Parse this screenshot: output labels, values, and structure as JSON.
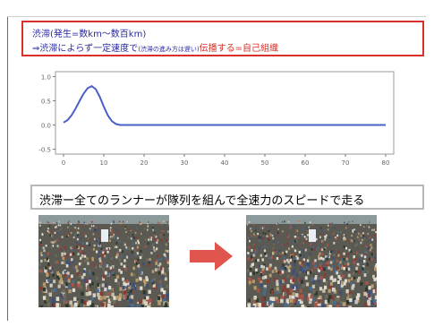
{
  "callout": {
    "line1": "渋滞(発生=数km〜数百km)",
    "line2_prefix": "⇒渋滞によらず一定速度で",
    "line2_small": "(渋滞の進み方は遅い)",
    "line2_suffix": "伝播する=自己組織"
  },
  "band": {
    "text": "渋滞ー全てのランナーが隊列を組んで全速力のスピードで走る"
  },
  "chart_data": {
    "type": "line",
    "title": "",
    "xlabel": "",
    "ylabel": "",
    "x": [
      0,
      1,
      2,
      3,
      4,
      5,
      6,
      7,
      8,
      9,
      10,
      11,
      12,
      13,
      14,
      15,
      16,
      17,
      18,
      19,
      20,
      25,
      30,
      35,
      40,
      45,
      50,
      55,
      60,
      65,
      70,
      75,
      80
    ],
    "values": [
      0.05,
      0.1,
      0.2,
      0.34,
      0.5,
      0.65,
      0.76,
      0.8,
      0.74,
      0.58,
      0.38,
      0.2,
      0.08,
      0.02,
      0.0,
      0.0,
      0.0,
      0.0,
      0.0,
      0.0,
      0.0,
      0.0,
      0.0,
      0.0,
      0.0,
      0.0,
      0.0,
      0.0,
      0.0,
      0.0,
      0.0,
      0.0,
      0.0
    ],
    "xticks": [
      "0",
      "10",
      "20",
      "30",
      "40",
      "50",
      "60",
      "70",
      "80"
    ],
    "yticks": [
      "1.0",
      "0.5",
      "0.0",
      "-0.5"
    ],
    "xlim": [
      -2,
      82
    ],
    "ylim": [
      -0.6,
      1.1
    ],
    "line_color": "#4a5fc8"
  },
  "arrow_color": "#e0554e"
}
